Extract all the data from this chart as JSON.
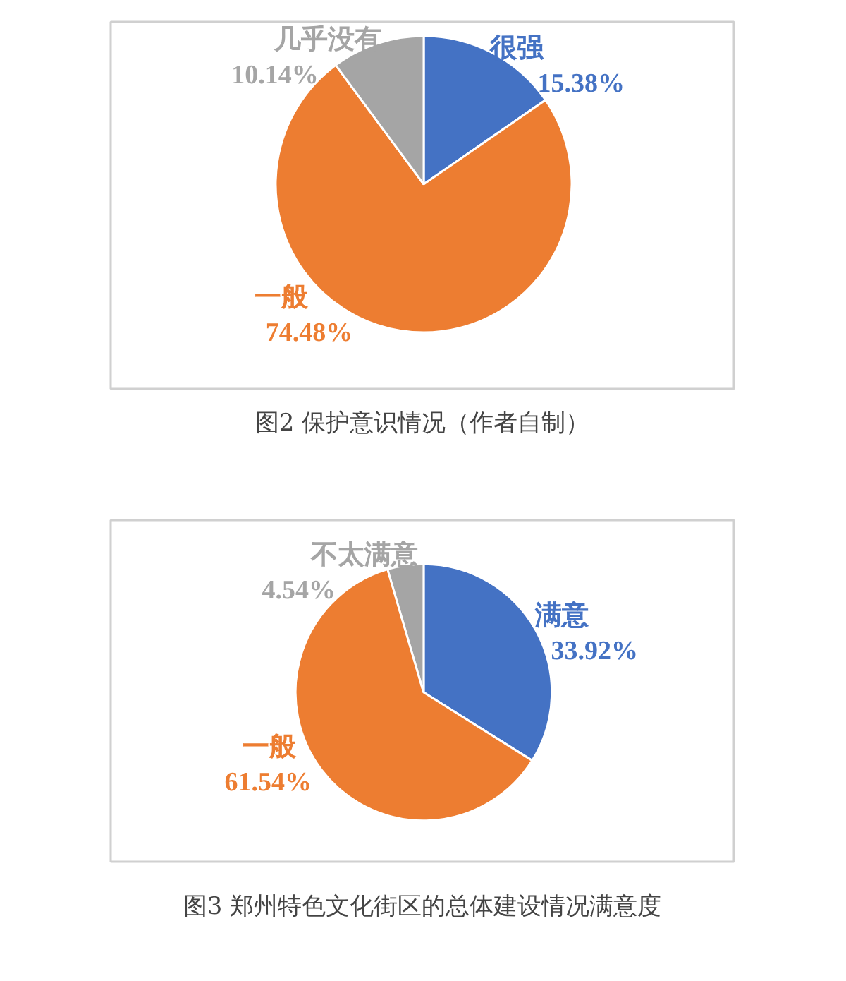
{
  "chart_data": [
    {
      "type": "pie",
      "title": "图2 保护意识情况（作者自制）",
      "categories": [
        "很强",
        "一般",
        "几乎没有"
      ],
      "values": [
        15.38,
        74.48,
        10.14
      ],
      "colors": [
        "#4472c4",
        "#ed7d31",
        "#a5a5a5"
      ],
      "value_labels": [
        "15.38%",
        "74.48%",
        "10.14%"
      ]
    },
    {
      "type": "pie",
      "title": "图3 郑州特色文化街区的总体建设情况满意度",
      "categories": [
        "满意",
        "一般",
        "不太满意"
      ],
      "values": [
        33.92,
        61.54,
        4.54
      ],
      "colors": [
        "#4472c4",
        "#ed7d31",
        "#a5a5a5"
      ],
      "value_labels": [
        "33.92%",
        "61.54%",
        "4.54%"
      ]
    }
  ]
}
